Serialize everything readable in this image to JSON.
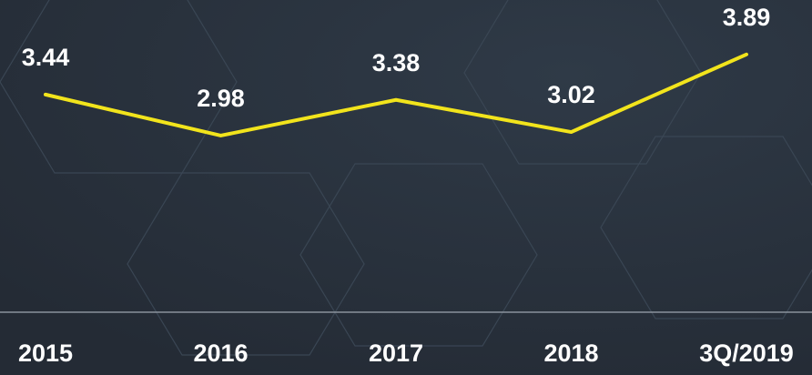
{
  "chart_data": {
    "type": "line",
    "categories": [
      "2015",
      "2016",
      "2017",
      "2018",
      "3Q/2019"
    ],
    "values": [
      3.44,
      2.98,
      3.38,
      3.02,
      3.89
    ],
    "color": "#f2e41c",
    "ylim": [
      1,
      4.5
    ]
  }
}
